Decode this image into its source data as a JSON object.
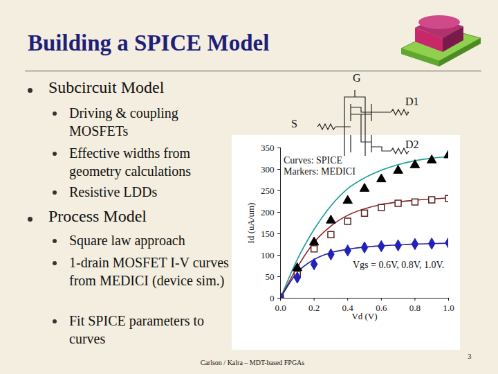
{
  "slide": {
    "title": "Building a SPICE Model",
    "bullets": [
      {
        "text": "Subcircuit Model",
        "sub": [
          "Driving & coupling MOSFETs",
          "Effective widths from geometry calculations",
          "Resistive LDDs"
        ]
      },
      {
        "text": "Process Model",
        "sub": [
          "Square law approach",
          "1-drain MOSFET I-V curves from MEDICI (device sim.)",
          "Fit SPICE parameters to curves"
        ]
      }
    ],
    "diagram": {
      "labels": [
        "G",
        "S",
        "D1",
        "D2"
      ]
    },
    "footer": "Carlson / Kalra – MDT-based FPGAs",
    "page": 3
  },
  "chart_data": {
    "type": "line",
    "x_label": "Vd (V)",
    "y_label": "Id (uA/um)",
    "annotations": [
      "Curves: SPICE",
      "Markers: MEDICI",
      "Vgs = 0.6V, 0.8V, 1.0V."
    ],
    "x": [
      0,
      0.1,
      0.2,
      0.3,
      0.4,
      0.5,
      0.6,
      0.7,
      0.8,
      0.9,
      1.0
    ],
    "series": [
      {
        "type": "line",
        "color": "#1a9a9a",
        "values": [
          0,
          90,
          160,
          215,
          255,
          280,
          298,
          311,
          320,
          326,
          330
        ]
      },
      {
        "type": "line",
        "color": "#8b2525",
        "values": [
          0,
          72,
          130,
          168,
          193,
          208,
          218,
          224,
          228,
          231,
          233
        ]
      },
      {
        "type": "line",
        "color": "#2020a0",
        "values": [
          0,
          60,
          90,
          106,
          114,
          119,
          122,
          124,
          126,
          127,
          128
        ]
      },
      {
        "type": "scatter",
        "marker": "triangle",
        "color": "#000000",
        "values": [
          0,
          70,
          130,
          181,
          227,
          255,
          277,
          297,
          310,
          321,
          333
        ]
      },
      {
        "type": "scatter",
        "marker": "open_square",
        "color": "#5a2020",
        "values": [
          0,
          55,
          115,
          148,
          179,
          198,
          211,
          221,
          224,
          229,
          232
        ]
      },
      {
        "type": "scatter",
        "marker": "diamond",
        "color": "#2222bb",
        "values": [
          0,
          48,
          79,
          102,
          111,
          118,
          121,
          123,
          126,
          127,
          129
        ]
      }
    ],
    "xlim": [
      0,
      1.0
    ],
    "xticks": [
      {
        "value": 0,
        "label": "0.0"
      },
      {
        "value": 0.2,
        "label": "0.2"
      },
      {
        "value": 0.4,
        "label": "0.4"
      },
      {
        "value": 0.6,
        "label": "0.6"
      },
      {
        "value": 0.8,
        "label": "0.8"
      },
      {
        "value": 1.0,
        "label": "1.0"
      }
    ],
    "ylim": [
      0,
      350
    ],
    "yticks": [
      0,
      50,
      100,
      150,
      200,
      250,
      300,
      350
    ],
    "grid": false
  }
}
